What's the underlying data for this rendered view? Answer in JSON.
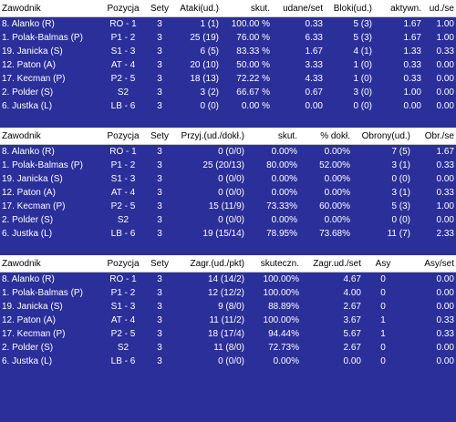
{
  "tables": [
    {
      "headers": [
        "Zawodnik",
        "Pozycja",
        "Sety",
        "Ataki(ud.)",
        "skut.",
        "udane/set",
        "Bloki(ud.)",
        "aktywn.",
        "ud./se"
      ],
      "rows": [
        [
          "8. Alanko (R)",
          "RO - 1",
          "3",
          "1 (1)",
          "100.00 %",
          "0.33",
          "5 (3)",
          "1.67",
          "1.00"
        ],
        [
          "1. Polak-Balmas (P)",
          "P1 - 2",
          "3",
          "25 (19)",
          "76.00 %",
          "6.33",
          "5 (3)",
          "1.67",
          "1.00"
        ],
        [
          "19. Janicka (S)",
          "S1 - 3",
          "3",
          "6 (5)",
          "83.33 %",
          "1.67",
          "4 (1)",
          "1.33",
          "0.33"
        ],
        [
          "12. Paton (A)",
          "AT - 4",
          "3",
          "20 (10)",
          "50.00 %",
          "3.33",
          "1 (0)",
          "0.33",
          "0.00"
        ],
        [
          "17. Kecman (P)",
          "P2 - 5",
          "3",
          "18 (13)",
          "72.22 %",
          "4.33",
          "1 (0)",
          "0.33",
          "0.00"
        ],
        [
          "2. Polder (S)",
          "S2",
          "3",
          "3 (2)",
          "66.67 %",
          "0.67",
          "3 (0)",
          "1.00",
          "0.00"
        ],
        [
          "6. Justka (L)",
          "LB - 6",
          "3",
          "0 (0)",
          "0.00 %",
          "0.00",
          "0 (0)",
          "0.00",
          "0.00"
        ]
      ]
    },
    {
      "headers": [
        "Zawodnik",
        "Pozycja",
        "Sety",
        "Przyj.(ud./dokł.)",
        "skut.",
        "% dokł.",
        "Obrony(ud.)",
        "Obr./se"
      ],
      "rows": [
        [
          "8. Alanko (R)",
          "RO - 1",
          "3",
          "0 (0/0)",
          "0.00%",
          "0.00%",
          "7 (5)",
          "1.67"
        ],
        [
          "1. Polak-Balmas (P)",
          "P1 - 2",
          "3",
          "25 (20/13)",
          "80.00%",
          "52.00%",
          "3 (1)",
          "0.33"
        ],
        [
          "19. Janicka (S)",
          "S1 - 3",
          "3",
          "0 (0/0)",
          "0.00%",
          "0.00%",
          "0 (0)",
          "0.00"
        ],
        [
          "12. Paton (A)",
          "AT - 4",
          "3",
          "0 (0/0)",
          "0.00%",
          "0.00%",
          "3 (1)",
          "0.33"
        ],
        [
          "17. Kecman (P)",
          "P2 - 5",
          "3",
          "15 (11/9)",
          "73.33%",
          "60.00%",
          "5 (3)",
          "1.00"
        ],
        [
          "2. Polder (S)",
          "S2",
          "3",
          "0 (0/0)",
          "0.00%",
          "0.00%",
          "0 (0)",
          "0.00"
        ],
        [
          "6. Justka (L)",
          "LB - 6",
          "3",
          "19 (15/14)",
          "78.95%",
          "73.68%",
          "11 (7)",
          "2.33"
        ]
      ]
    },
    {
      "headers": [
        "Zawodnik",
        "Pozycja",
        "Sety",
        "Zagr.(ud./pkt)",
        "skuteczn.",
        "Zagr.ud./set",
        "Asy",
        "Asy/set"
      ],
      "rows": [
        [
          "8. Alanko (R)",
          "RO - 1",
          "3",
          "14 (14/2)",
          "100.00%",
          "4.67",
          "0",
          "0.00"
        ],
        [
          "1. Polak-Balmas (P)",
          "P1 - 2",
          "3",
          "12 (12/2)",
          "100.00%",
          "4.00",
          "0",
          "0.00"
        ],
        [
          "19. Janicka (S)",
          "S1 - 3",
          "3",
          "9 (8/0)",
          "88.89%",
          "2.67",
          "0",
          "0.00"
        ],
        [
          "12. Paton (A)",
          "AT - 4",
          "3",
          "11 (11/2)",
          "100.00%",
          "3.67",
          "1",
          "0.33"
        ],
        [
          "17. Kecman (P)",
          "P2 - 5",
          "3",
          "18 (17/4)",
          "94.44%",
          "5.67",
          "1",
          "0.33"
        ],
        [
          "2. Polder (S)",
          "S2",
          "3",
          "11 (8/0)",
          "72.73%",
          "2.67",
          "0",
          "0.00"
        ],
        [
          "6. Justka (L)",
          "LB - 6",
          "3",
          "0 (0/0)",
          "0.00%",
          "0.00",
          "0",
          "0.00"
        ]
      ]
    }
  ]
}
